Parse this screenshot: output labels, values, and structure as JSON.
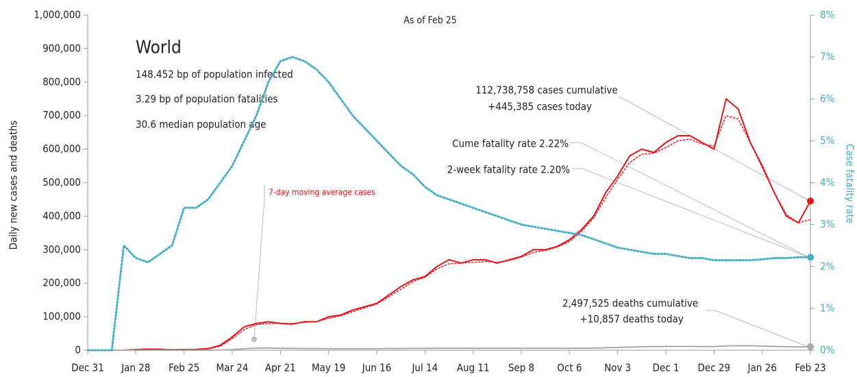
{
  "chart_data": {
    "type": "line",
    "subtitle": "As of Feb 25",
    "annotations": {
      "region": "World",
      "infected": "148.452 bp of population infected",
      "fatalities": "3.29 bp of population fatalities",
      "age": "30.6 median population age",
      "cases_cum": "112,738,758 cases cumulative",
      "cases_today": "+445,385 cases today",
      "cume_rate": "Cume fatality rate 2.22%",
      "two_week_rate": "2-week fatality rate 2.20%",
      "deaths_cum": "2,497,525 deaths cumulative",
      "deaths_today": "+10,857 deaths today",
      "avg_label": "7-day moving average cases"
    },
    "ylabel": "Daily new cases and deaths",
    "y2label": "Case fatality rate",
    "categories": [
      "Dec 31",
      null,
      null,
      null,
      "Jan 28",
      null,
      null,
      null,
      "Feb 25",
      null,
      null,
      null,
      "Mar 24",
      null,
      null,
      null,
      "Apr 21",
      null,
      null,
      null,
      "May 19",
      null,
      null,
      null,
      "Jun 16",
      null,
      null,
      null,
      "Jul 14",
      null,
      null,
      null,
      "Aug 11",
      null,
      null,
      null,
      "Sep 8",
      null,
      null,
      null,
      "Oct 6",
      null,
      null,
      null,
      "Nov 3",
      null,
      null,
      null,
      "Dec 1",
      null,
      null,
      null,
      "Dec 29",
      null,
      null,
      null,
      "Jan 26",
      null,
      null,
      null,
      "Feb 23"
    ],
    "ylim": [
      0,
      1000000
    ],
    "yticks": [
      0,
      {
        "value": 100000,
        "label": "100,000"
      },
      {
        "value": 200000,
        "label": "200,000"
      },
      {
        "value": 300000,
        "label": "300,000"
      },
      {
        "value": 400000,
        "label": "400,000"
      },
      {
        "value": 500000,
        "label": "500,000"
      },
      {
        "value": 600000,
        "label": "600,000"
      },
      {
        "value": 700000,
        "label": "700,000"
      },
      {
        "value": 800000,
        "label": "800,000"
      },
      {
        "value": 900000,
        "label": "900,000"
      },
      {
        "value": 1000000,
        "label": "1,000,000"
      }
    ],
    "y2lim": [
      0,
      8
    ],
    "y2ticks": [
      {
        "value": 0,
        "label": "0%"
      },
      {
        "value": 1,
        "label": "1%"
      },
      {
        "value": 2,
        "label": "2%"
      },
      {
        "value": 3,
        "label": "3%"
      },
      {
        "value": 4,
        "label": "4%"
      },
      {
        "value": 5,
        "label": "5%"
      },
      {
        "value": 6,
        "label": "6%"
      },
      {
        "value": 7,
        "label": "7%"
      },
      {
        "value": 8,
        "label": "8%"
      }
    ],
    "series": [
      {
        "name": "Daily new cases",
        "color": "#e8141a",
        "dash": "solid",
        "values": [
          0,
          0,
          0,
          300,
          2000,
          3500,
          3000,
          1500,
          2000,
          2500,
          5000,
          15000,
          40000,
          70000,
          80000,
          85000,
          80000,
          78000,
          85000,
          85000,
          100000,
          105000,
          120000,
          130000,
          140000,
          165000,
          190000,
          210000,
          220000,
          250000,
          270000,
          260000,
          270000,
          270000,
          260000,
          270000,
          280000,
          300000,
          300000,
          310000,
          330000,
          360000,
          400000,
          470000,
          520000,
          580000,
          600000,
          590000,
          620000,
          640000,
          640000,
          620000,
          600000,
          750000,
          720000,
          620000,
          550000,
          470000,
          400000,
          380000,
          445385
        ]
      },
      {
        "name": "7-day moving average cases",
        "color": "#e8141a",
        "dash": "dotted",
        "values": [
          0,
          0,
          0,
          200,
          1800,
          3000,
          2800,
          1800,
          1800,
          2300,
          4000,
          12000,
          35000,
          62000,
          76000,
          80000,
          80000,
          80000,
          83000,
          86000,
          95000,
          103000,
          115000,
          127000,
          138000,
          160000,
          182000,
          205000,
          218000,
          243000,
          258000,
          260000,
          262000,
          265000,
          262000,
          268000,
          278000,
          292000,
          298000,
          308000,
          325000,
          355000,
          395000,
          455000,
          510000,
          560000,
          585000,
          588000,
          605000,
          625000,
          630000,
          615000,
          610000,
          700000,
          690000,
          620000,
          545000,
          470000,
          405000,
          380000,
          390000
        ]
      },
      {
        "name": "Daily deaths",
        "color": "#aaaaaa",
        "dash": "solid",
        "values": [
          0,
          0,
          0,
          10,
          40,
          80,
          100,
          80,
          60,
          80,
          300,
          700,
          2000,
          4500,
          6500,
          7000,
          6000,
          5500,
          5000,
          5000,
          4500,
          4500,
          4500,
          4500,
          4500,
          5000,
          5000,
          5500,
          5500,
          6000,
          6000,
          5800,
          6000,
          6000,
          5800,
          5800,
          5800,
          6000,
          6000,
          6000,
          6000,
          6000,
          6500,
          7500,
          8500,
          9500,
          10500,
          11000,
          11500,
          11500,
          11500,
          11000,
          11000,
          13000,
          13500,
          13500,
          12500,
          11500,
          10500,
          10000,
          10857
        ]
      },
      {
        "name": "Case fatality rate",
        "color": "#45b0c4",
        "dash": "dotted",
        "axis": "y2",
        "values": [
          0,
          0,
          0,
          2.5,
          2.2,
          2.1,
          2.3,
          2.5,
          3.4,
          3.4,
          3.6,
          4.0,
          4.4,
          5.0,
          5.6,
          6.4,
          6.9,
          7.0,
          6.9,
          6.7,
          6.4,
          6.0,
          5.6,
          5.3,
          5.0,
          4.7,
          4.4,
          4.2,
          3.9,
          3.7,
          3.6,
          3.5,
          3.4,
          3.3,
          3.2,
          3.1,
          3.0,
          2.95,
          2.9,
          2.85,
          2.8,
          2.75,
          2.65,
          2.55,
          2.45,
          2.4,
          2.35,
          2.3,
          2.3,
          2.25,
          2.2,
          2.2,
          2.15,
          2.15,
          2.15,
          2.15,
          2.17,
          2.2,
          2.2,
          2.22,
          2.22
        ]
      }
    ]
  }
}
